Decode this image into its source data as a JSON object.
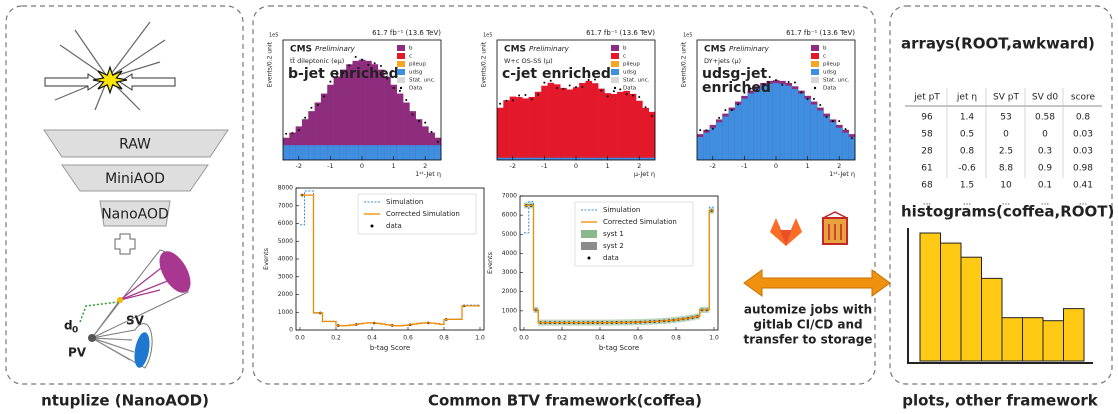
{
  "captions": [
    "ntuplize (NanoAOD)",
    "Common BTV framework(coffea)",
    "plots, other framework"
  ],
  "ntuplize": {
    "tiers": [
      "RAW",
      "MiniAOD",
      "NanoAOD"
    ],
    "d0": "d",
    "d0_sub": "0",
    "sv": "SV",
    "pv": "PV"
  },
  "control": {
    "scale": "1e5",
    "ylabel": "Events/0.2 unit",
    "xticks": [
      "-2",
      "-1",
      "0",
      "1",
      "2"
    ],
    "legend": [
      {
        "name": "b",
        "color": "#8e2c7e"
      },
      {
        "name": "c",
        "color": "#e3182a"
      },
      {
        "name": "pileup",
        "color": "#f5a623"
      },
      {
        "name": "udsg",
        "color": "#3f8ee0"
      },
      {
        "name": "Stat. unc.",
        "color": "#d8d8d8"
      },
      {
        "name": "Data",
        "color": "#000000"
      }
    ],
    "plots": [
      {
        "kind": "b",
        "lumi": "61.7 fb⁻¹ (13.6 TeV)",
        "experiment": "CMS",
        "status": "Preliminary",
        "selection": "tt̄ dileptonic (eμ)",
        "region": [
          "b-jet enriched"
        ],
        "region_color": "#9a3a8a",
        "xlabel": "1ˢᵗ-Jet η"
      },
      {
        "kind": "c",
        "lumi": "61.7 fb⁻¹ (13.6 TeV)",
        "experiment": "CMS",
        "status": "Preliminary",
        "selection": "W+c OS-SS (μ)",
        "region": [
          "c-jet enriched"
        ],
        "region_color": "#e3182a",
        "xlabel": "μ-Jet η"
      },
      {
        "kind": "udsg",
        "lumi": "61.7 fb⁻¹ (13.6 TeV)",
        "experiment": "CMS",
        "status": "Preliminary",
        "selection": "DY+jets (μ)",
        "region": [
          "udsg-jet",
          "enriched"
        ],
        "region_color": "#3f8ee0",
        "xlabel": "1ˢᵗ-Jet η"
      }
    ]
  },
  "score": {
    "xlabel": "b-tag Score",
    "ylabel": "Events",
    "xticks": [
      "0.0",
      "0.2",
      "0.4",
      "0.6",
      "0.8",
      "1.0"
    ],
    "plots": [
      {
        "legend": [
          "Simulation",
          "Corrected Simulation",
          "data"
        ],
        "yticks": [
          0,
          1000,
          2000,
          3000,
          4000,
          5000,
          6000,
          7000,
          8000
        ]
      },
      {
        "legend": [
          "Simulation",
          "Corrected Simulation",
          "syst 1",
          "syst 2",
          "data"
        ],
        "yticks": [
          0,
          1000,
          2000,
          3000,
          4000,
          5000,
          6000,
          7000
        ]
      }
    ]
  },
  "automation": [
    "automize jobs with",
    "gitlab CI/CD and",
    "transfer to storage"
  ],
  "arrays": {
    "title": "arrays(ROOT,awkward)",
    "header": [
      "jet pT",
      "jet η",
      "SV pT",
      "SV d0",
      "score"
    ],
    "rows": [
      [
        "96",
        "1.4",
        "53",
        "0.58",
        "0.8"
      ],
      [
        "58",
        "0.5",
        "0",
        "0",
        "0.03"
      ],
      [
        "28",
        "0.8",
        "2.5",
        "0.3",
        "0.03"
      ],
      [
        "61",
        "-0.6",
        "8.8",
        "0.9",
        "0.98"
      ],
      [
        "68",
        "1.5",
        "10",
        "0.1",
        "0.41"
      ],
      [
        "...",
        "...",
        "...",
        "...",
        "..."
      ]
    ]
  },
  "histograms": {
    "title": "histograms(coffea,ROOT)",
    "color": "#ffc914",
    "values": [
      127,
      117,
      103,
      82,
      43,
      43,
      40,
      52
    ],
    "ylim": [
      0,
      130
    ]
  }
}
